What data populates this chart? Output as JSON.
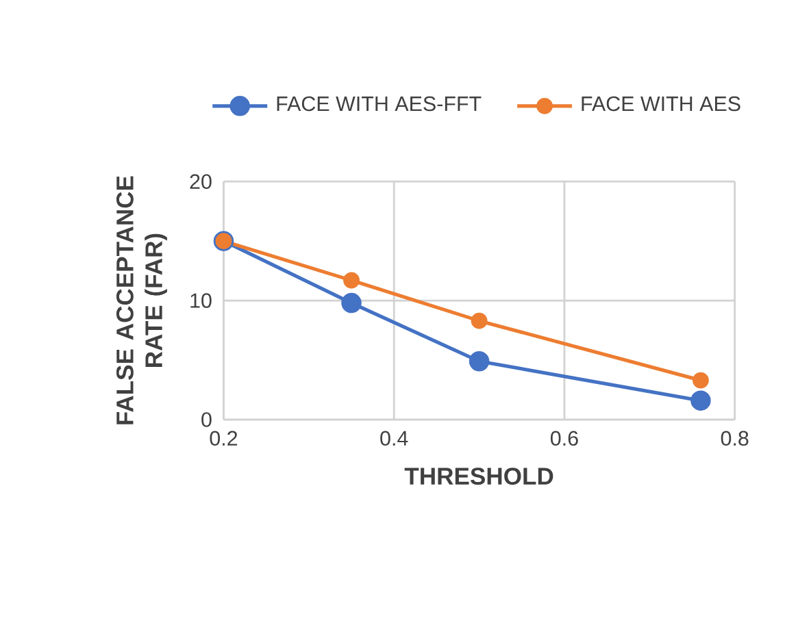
{
  "chart_data": {
    "type": "line",
    "xlabel": "THRESHOLD",
    "ylabel": "FALSE ACCEPTANCE RATE (FAR)",
    "x": [
      0.2,
      0.35,
      0.5,
      0.76
    ],
    "series": [
      {
        "name": "FACE WITH AES-FFT",
        "color": "#4472c4",
        "values": [
          15,
          9.8,
          4.9,
          1.6
        ]
      },
      {
        "name": "FACE WITH AES",
        "color": "#ed7d31",
        "values": [
          15,
          11.7,
          8.3,
          3.3
        ]
      }
    ],
    "xlim": [
      0.2,
      0.8
    ],
    "xticks": [
      0.2,
      0.4,
      0.6,
      0.8
    ],
    "ylim": [
      0,
      20
    ],
    "yticks": [
      0,
      10,
      20
    ],
    "grid": true,
    "legend": "top",
    "marker": "circle",
    "line_style": "solid"
  }
}
